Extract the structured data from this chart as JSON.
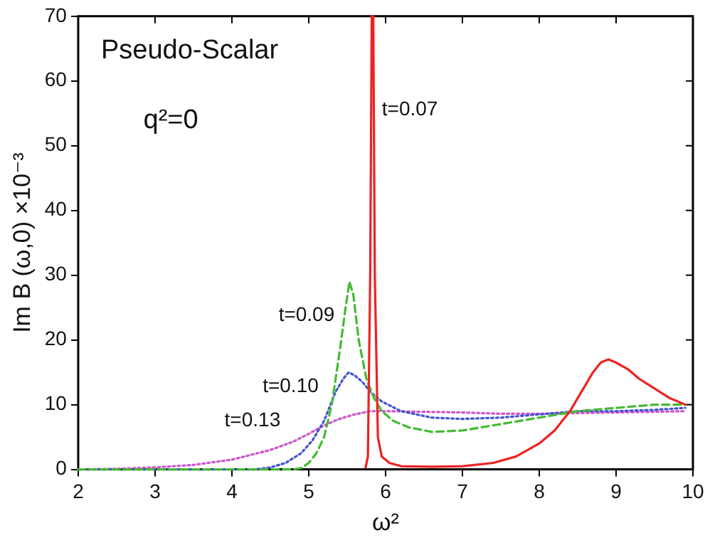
{
  "chart_data": {
    "type": "line",
    "xlabel": "ω²",
    "ylabel": "Im B (ω,0) ×10⁻³",
    "xlim": [
      2,
      10
    ],
    "xticks": [
      2,
      3,
      4,
      5,
      6,
      7,
      8,
      9,
      10
    ],
    "ylim": [
      0,
      70
    ],
    "yticks": [
      0,
      10,
      20,
      30,
      40,
      50,
      60,
      70
    ],
    "grid": false,
    "legend": false,
    "marker": "none",
    "series": [
      {
        "color": "#ee2222",
        "line_style": "solid",
        "x": [
          5.74,
          5.77,
          5.8,
          5.82,
          5.84,
          5.86,
          5.9,
          5.95,
          6.05,
          6.2,
          6.6,
          7,
          7.4,
          7.7,
          8,
          8.2,
          8.4,
          8.55,
          8.7,
          8.8,
          8.9,
          9.0,
          9.15,
          9.3,
          9.5,
          9.7,
          9.9
        ],
        "values": [
          0.3,
          2,
          30,
          70,
          70,
          30,
          5,
          2,
          1,
          0.5,
          0.4,
          0.5,
          1,
          2,
          4,
          6,
          9,
          12,
          15,
          16.5,
          17,
          16.5,
          15.5,
          14,
          12.5,
          11,
          10
        ]
      },
      {
        "color": "#44bb33",
        "line_style": "dashed",
        "x": [
          2,
          4.8,
          4.9,
          5.0,
          5.1,
          5.2,
          5.3,
          5.4,
          5.48,
          5.53,
          5.58,
          5.65,
          5.75,
          5.85,
          5.95,
          6.1,
          6.3,
          6.6,
          7,
          7.5,
          8,
          8.5,
          9,
          9.5,
          9.9
        ],
        "values": [
          0,
          0,
          0.2,
          1,
          2.5,
          5,
          10,
          18,
          25,
          29,
          27,
          20,
          14,
          11,
          9,
          7.5,
          6.5,
          5.8,
          6,
          7,
          8,
          9,
          9.5,
          10,
          10
        ]
      },
      {
        "color": "#4455cc",
        "line_style": "dotted",
        "x": [
          2,
          4.3,
          4.5,
          4.7,
          4.9,
          5.05,
          5.2,
          5.35,
          5.45,
          5.52,
          5.6,
          5.7,
          5.8,
          5.95,
          6.2,
          6.6,
          7,
          7.5,
          8,
          8.5,
          9,
          9.5,
          9.9
        ],
        "values": [
          0,
          0,
          0.3,
          1,
          2.5,
          4.5,
          7.5,
          12,
          14,
          15,
          14.5,
          13.5,
          12,
          10.5,
          9,
          8,
          7.8,
          8,
          8.5,
          9,
          9,
          9.2,
          9.5
        ]
      },
      {
        "color": "#cc55cc",
        "line_style": "dotted",
        "x": [
          2,
          2.5,
          3,
          3.5,
          4,
          4.5,
          4.8,
          5.0,
          5.2,
          5.4,
          5.6,
          5.8,
          6,
          6.5,
          7,
          7.5,
          8,
          8.5,
          9,
          9.5,
          9.9
        ],
        "values": [
          0,
          0.1,
          0.3,
          0.7,
          1.5,
          3,
          4.3,
          5.5,
          6.8,
          7.8,
          8.5,
          9,
          9,
          8.9,
          8.8,
          8.6,
          8.6,
          8.7,
          8.8,
          8.9,
          9
        ]
      }
    ],
    "annotations": [
      "Pseudo-Scalar",
      "q²=0",
      "t=0.07",
      "t=0.09",
      "t=0.10",
      "t=0.13"
    ]
  }
}
